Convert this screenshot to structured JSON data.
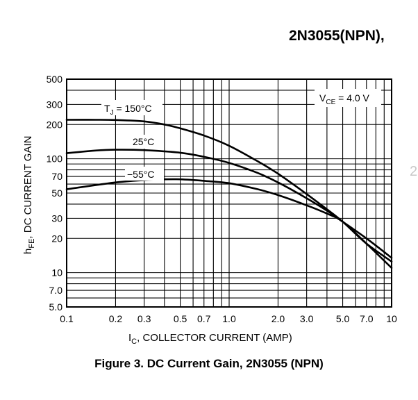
{
  "header": {
    "title": "2N3055(NPN),"
  },
  "caption": "Figure 3. DC Current Gain, 2N3055 (NPN)",
  "side_fragment": "2",
  "chart_data": {
    "type": "line",
    "title": "",
    "xlabel": "IC, COLLECTOR CURRENT (AMP)",
    "xlabel_main": "I",
    "xlabel_sub": "C",
    "xlabel_rest": ", COLLECTOR CURRENT (AMP)",
    "ylabel": "hFE, DC CURRENT GAIN",
    "ylabel_main": "h",
    "ylabel_sub": "FE",
    "ylabel_rest": ", DC CURRENT GAIN",
    "xscale": "log",
    "yscale": "log",
    "xlim": [
      0.1,
      10
    ],
    "ylim": [
      5,
      500
    ],
    "grid": true,
    "x_ticks": [
      {
        "v": 0.1,
        "label": "0.1"
      },
      {
        "v": 0.2,
        "label": "0.2"
      },
      {
        "v": 0.3,
        "label": "0.3"
      },
      {
        "v": 0.5,
        "label": "0.5"
      },
      {
        "v": 0.7,
        "label": "0.7"
      },
      {
        "v": 1.0,
        "label": "1.0"
      },
      {
        "v": 2.0,
        "label": "2.0"
      },
      {
        "v": 3.0,
        "label": "3.0"
      },
      {
        "v": 5.0,
        "label": "5.0"
      },
      {
        "v": 7.0,
        "label": "7.0"
      },
      {
        "v": 10,
        "label": "10"
      }
    ],
    "y_ticks": [
      {
        "v": 5,
        "label": "5.0"
      },
      {
        "v": 7,
        "label": "7.0"
      },
      {
        "v": 10,
        "label": "10"
      },
      {
        "v": 20,
        "label": "20"
      },
      {
        "v": 30,
        "label": "30"
      },
      {
        "v": 50,
        "label": "50"
      },
      {
        "v": 70,
        "label": "70"
      },
      {
        "v": 100,
        "label": "100"
      },
      {
        "v": 200,
        "label": "200"
      },
      {
        "v": 300,
        "label": "300"
      },
      {
        "v": 500,
        "label": "500"
      }
    ],
    "x_grid": [
      0.1,
      0.2,
      0.3,
      0.4,
      0.5,
      0.6,
      0.7,
      0.8,
      0.9,
      1,
      2,
      3,
      4,
      5,
      6,
      7,
      8,
      9,
      10
    ],
    "y_grid": [
      5,
      6,
      7,
      8,
      9,
      10,
      20,
      30,
      40,
      50,
      60,
      70,
      80,
      90,
      100,
      200,
      300,
      400,
      500
    ],
    "conditions": {
      "main": "V",
      "sub": "CE",
      "rest": " = 4.0 V"
    },
    "series": [
      {
        "name": "TJ = 150°C",
        "label_main": "T",
        "label_sub": "J",
        "label_rest": " = 150°C",
        "x": [
          0.1,
          0.15,
          0.2,
          0.3,
          0.4,
          0.5,
          0.7,
          1.0,
          1.5,
          2.0,
          3.0,
          4.0,
          5.0,
          7.0,
          10
        ],
        "y": [
          220,
          220,
          219,
          213,
          200,
          185,
          160,
          130,
          95,
          74,
          49,
          36,
          28,
          18,
          12.5
        ]
      },
      {
        "name": "25°C",
        "label_main": "25°C",
        "x": [
          0.1,
          0.15,
          0.2,
          0.3,
          0.5,
          0.7,
          1.0,
          1.5,
          2.0,
          3.0,
          4.0,
          5.0,
          7.0,
          10
        ],
        "y": [
          112,
          118,
          120,
          119,
          113,
          104,
          92,
          75,
          62,
          45,
          35,
          28,
          20,
          13.5
        ]
      },
      {
        "name": "−55°C",
        "label_main": "−55°C",
        "x": [
          0.1,
          0.2,
          0.3,
          0.4,
          0.5,
          0.7,
          1.0,
          1.5,
          2.0,
          3.0,
          4.0,
          5.0,
          7.0,
          10
        ],
        "y": [
          54,
          62,
          65,
          66,
          66,
          64,
          61,
          54,
          48,
          39,
          33,
          28,
          18,
          11
        ]
      }
    ]
  }
}
